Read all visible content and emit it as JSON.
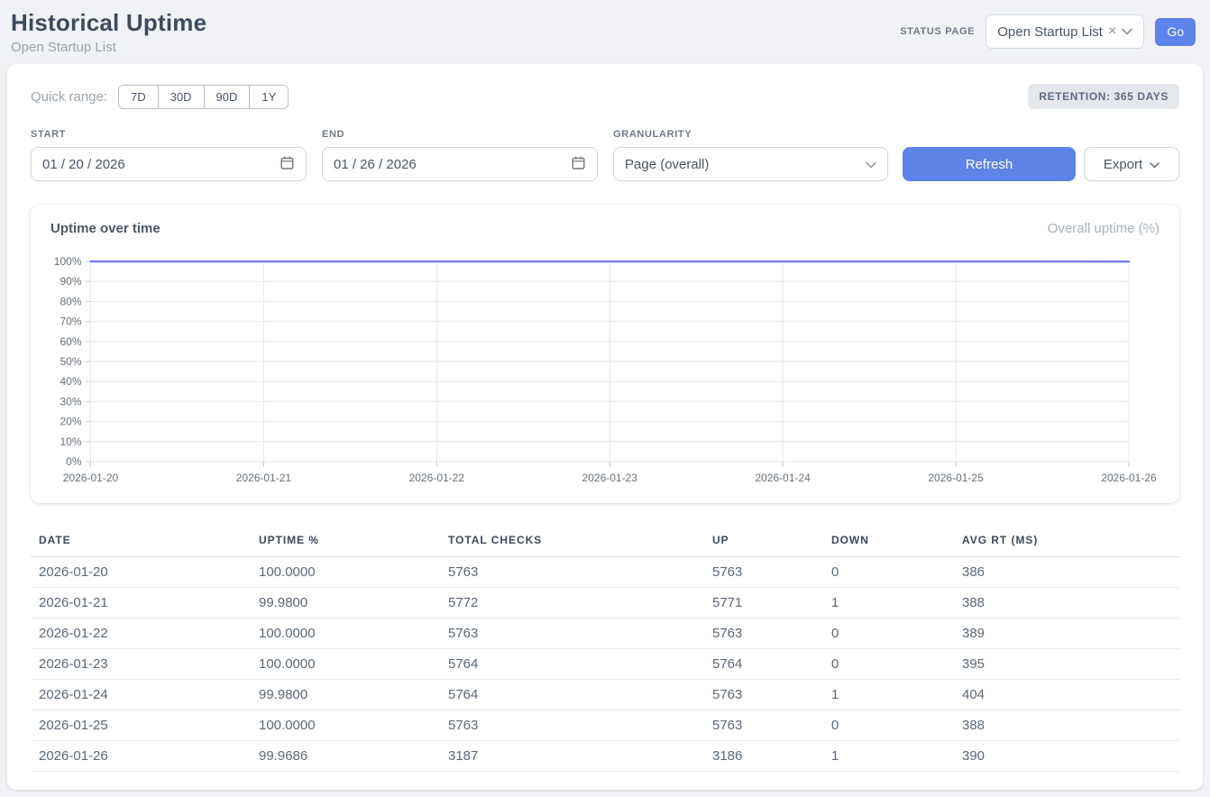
{
  "page": {
    "title": "Historical Uptime",
    "subtitle": "Open Startup List"
  },
  "header": {
    "status_page_label": "STATUS PAGE",
    "status_page_value": "Open Startup List",
    "clear_icon": "×",
    "go_button": "Go"
  },
  "toolbar": {
    "quick_range_label": "Quick range:",
    "quick_ranges": [
      "7D",
      "30D",
      "90D",
      "1Y"
    ],
    "retention_badge": "RETENTION: 365 DAYS",
    "start_label": "START",
    "start_value": "01 / 20 / 2026",
    "end_label": "END",
    "end_value": "01 / 26 / 2026",
    "granularity_label": "GRANULARITY",
    "granularity_value": "Page (overall)",
    "refresh_button": "Refresh",
    "export_button": "Export"
  },
  "chart": {
    "title": "Uptime over time",
    "legend": "Overall uptime (%)"
  },
  "chart_data": {
    "type": "line",
    "title": "Uptime over time",
    "x": [
      "2026-01-20",
      "2026-01-21",
      "2026-01-22",
      "2026-01-23",
      "2026-01-24",
      "2026-01-25",
      "2026-01-26"
    ],
    "series": [
      {
        "name": "Overall uptime (%)",
        "values": [
          100.0,
          99.98,
          100.0,
          100.0,
          99.98,
          100.0,
          99.9686
        ]
      }
    ],
    "xlabel": "",
    "ylabel": "",
    "ylim": [
      0,
      100
    ],
    "y_ticks": [
      "0%",
      "10%",
      "20%",
      "30%",
      "40%",
      "50%",
      "60%",
      "70%",
      "80%",
      "90%",
      "100%"
    ],
    "grid": true,
    "legend_position": "top-right",
    "line_color": "#7c82ec"
  },
  "table": {
    "columns": [
      "DATE",
      "UPTIME %",
      "TOTAL CHECKS",
      "UP",
      "DOWN",
      "AVG RT (MS)"
    ],
    "rows": [
      {
        "date": "2026-01-20",
        "uptime": "100.0000",
        "total": "5763",
        "up": "5763",
        "down": "0",
        "avg_rt": "386"
      },
      {
        "date": "2026-01-21",
        "uptime": "99.9800",
        "total": "5772",
        "up": "5771",
        "down": "1",
        "avg_rt": "388"
      },
      {
        "date": "2026-01-22",
        "uptime": "100.0000",
        "total": "5763",
        "up": "5763",
        "down": "0",
        "avg_rt": "389"
      },
      {
        "date": "2026-01-23",
        "uptime": "100.0000",
        "total": "5764",
        "up": "5764",
        "down": "0",
        "avg_rt": "395"
      },
      {
        "date": "2026-01-24",
        "uptime": "99.9800",
        "total": "5764",
        "up": "5763",
        "down": "1",
        "avg_rt": "404"
      },
      {
        "date": "2026-01-25",
        "uptime": "100.0000",
        "total": "5763",
        "up": "5763",
        "down": "0",
        "avg_rt": "388"
      },
      {
        "date": "2026-01-26",
        "uptime": "99.9686",
        "total": "3187",
        "up": "3186",
        "down": "1",
        "avg_rt": "390"
      }
    ]
  },
  "colors": {
    "accent_blue": "#5c83e8",
    "line_color": "#7c82ec",
    "grid_color": "#e6e8eb",
    "tick_color": "#c6cad0",
    "axis_label_color": "#67707b",
    "badge_bg": "#e4e7ec"
  }
}
